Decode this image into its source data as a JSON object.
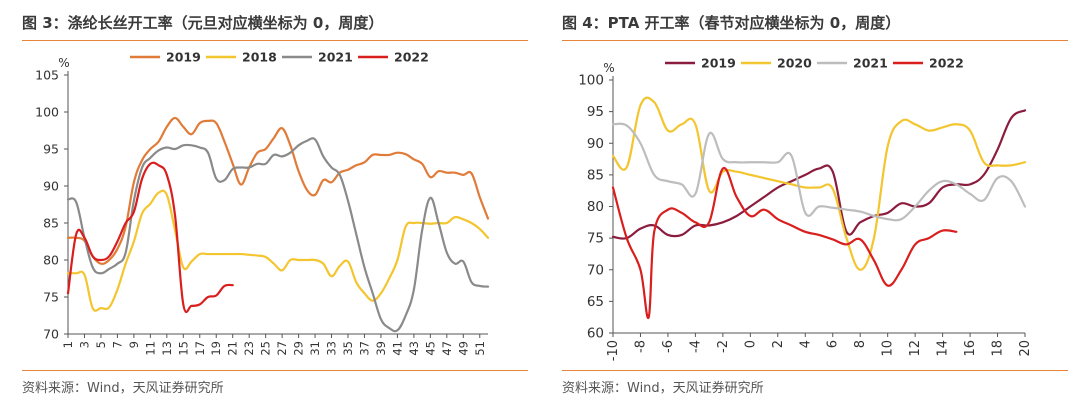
{
  "charts": [
    {
      "title": "图 3：涤纶长丝开工率（元旦对应横坐标为 0，周度）",
      "source": "资料来源：Wind，天风证券研究所"
    },
    {
      "title": "图 4：PTA 开工率（春节对应横坐标为 0，周度）",
      "source": "资料来源：Wind，天风证券研究所"
    }
  ],
  "chart_data": [
    {
      "type": "line",
      "ylabel": "%",
      "ylim": [
        70,
        105
      ],
      "yticks": [
        70,
        75,
        80,
        85,
        90,
        95,
        100,
        105
      ],
      "xlim": [
        1,
        52
      ],
      "xticks": [
        1,
        3,
        5,
        7,
        9,
        11,
        13,
        15,
        17,
        19,
        21,
        23,
        25,
        27,
        29,
        31,
        33,
        35,
        37,
        39,
        41,
        43,
        45,
        47,
        49,
        51
      ],
      "grid": false,
      "legend": "top",
      "series": [
        {
          "name": "2019",
          "color": "#e07b39",
          "x": [
            1,
            2,
            3,
            4,
            5,
            6,
            7,
            8,
            9,
            10,
            11,
            12,
            13,
            14,
            15,
            16,
            17,
            18,
            19,
            20,
            21,
            22,
            23,
            24,
            25,
            26,
            27,
            28,
            29,
            30,
            31,
            32,
            33,
            34,
            35,
            36,
            37,
            38,
            39,
            40,
            41,
            42,
            43,
            44,
            45,
            46,
            47,
            48,
            49,
            50,
            51,
            52
          ],
          "values": [
            83,
            83,
            82.6,
            80.5,
            79.5,
            80,
            81.5,
            84.5,
            90.5,
            93.5,
            95,
            96,
            98,
            99.2,
            98,
            97,
            98.5,
            98.8,
            98.5,
            96,
            93,
            90.2,
            92.5,
            94.5,
            95,
            96.5,
            97.8,
            95.5,
            92,
            89.5,
            88.8,
            90.8,
            90.5,
            91.8,
            92.2,
            92.8,
            93.2,
            94.2,
            94.2,
            94.2,
            94.5,
            94.3,
            93.6,
            93,
            91.2,
            92,
            91.8,
            91.8,
            91.5,
            91.7,
            88.5,
            85.6
          ]
        },
        {
          "name": "2018",
          "color": "#f3c52f",
          "x": [
            1,
            2,
            3,
            4,
            5,
            6,
            7,
            8,
            9,
            10,
            11,
            12,
            13,
            14,
            15,
            16,
            17,
            18,
            19,
            20,
            21,
            22,
            23,
            24,
            25,
            26,
            27,
            28,
            29,
            30,
            31,
            32,
            33,
            34,
            35,
            36,
            37,
            38,
            39,
            40,
            41,
            42,
            43,
            44,
            45,
            46,
            47,
            48,
            49,
            50,
            51,
            52
          ],
          "values": [
            78.2,
            78.2,
            78,
            73.5,
            73.5,
            73.6,
            76,
            79.5,
            82.5,
            86.3,
            87.6,
            89.1,
            88.8,
            84,
            79,
            79.8,
            80.8,
            80.8,
            80.8,
            80.8,
            80.8,
            80.8,
            80.7,
            80.6,
            80.4,
            79.5,
            78.6,
            80,
            80,
            80,
            80,
            79.5,
            77.8,
            79.2,
            79.8,
            77,
            75.5,
            74.5,
            75.5,
            77.5,
            80,
            84.5,
            85,
            85,
            84.9,
            85,
            85,
            85.8,
            85.5,
            85,
            84.2,
            83
          ]
        },
        {
          "name": "2021",
          "color": "#8a8a8a",
          "x": [
            1,
            2,
            3,
            4,
            5,
            6,
            7,
            8,
            9,
            10,
            11,
            12,
            13,
            14,
            15,
            16,
            17,
            18,
            19,
            20,
            21,
            22,
            23,
            24,
            25,
            26,
            27,
            28,
            29,
            30,
            31,
            32,
            33,
            34,
            35,
            36,
            37,
            38,
            39,
            40,
            41,
            42,
            43,
            44,
            45,
            46,
            47,
            48,
            49,
            50,
            51,
            52
          ],
          "values": [
            88.2,
            87.8,
            83,
            79,
            78.2,
            78.8,
            79.5,
            81,
            88,
            92.5,
            93.8,
            94.8,
            95.2,
            95,
            95.5,
            95.5,
            95.2,
            94.5,
            91,
            90.8,
            92.3,
            92.5,
            92.5,
            93,
            93,
            94.2,
            94,
            94.5,
            95.5,
            96.1,
            96.3,
            94,
            92.5,
            91.5,
            88,
            83.5,
            79,
            75.5,
            72,
            70.8,
            70.5,
            72.5,
            76,
            84,
            88.4,
            85,
            81,
            79.5,
            79.8,
            77,
            76.5,
            76.4
          ]
        },
        {
          "name": "2022",
          "color": "#d91e1e",
          "x": [
            1,
            2,
            3,
            4,
            5,
            6,
            7,
            8,
            9,
            10,
            11,
            12,
            13,
            14,
            15,
            16,
            17,
            18,
            19,
            20,
            21
          ],
          "values": [
            75.5,
            83.5,
            83,
            80.5,
            80,
            80.5,
            82.5,
            85,
            86.5,
            91,
            93,
            92.8,
            91.5,
            86,
            74,
            73.8,
            74,
            75,
            75.2,
            76.5,
            76.6
          ]
        }
      ]
    },
    {
      "type": "line",
      "ylabel": "%",
      "ylim": [
        60,
        100
      ],
      "yticks": [
        60,
        65,
        70,
        75,
        80,
        85,
        90,
        95,
        100
      ],
      "xlim": [
        -10,
        20
      ],
      "xticks": [
        -10,
        -8,
        -6,
        -4,
        -2,
        0,
        2,
        4,
        6,
        8,
        10,
        12,
        14,
        16,
        18,
        20
      ],
      "grid": false,
      "legend": "top",
      "series": [
        {
          "name": "2019",
          "color": "#8b1c3d",
          "x": [
            -10,
            -9,
            -8,
            -7,
            -6,
            -5,
            -4,
            -3,
            -2,
            -1,
            0,
            1,
            2,
            3,
            4,
            5,
            6,
            7,
            8,
            9,
            10,
            11,
            12,
            13,
            14,
            15,
            16,
            17,
            18,
            19,
            20
          ],
          "values": [
            75.2,
            75,
            76.5,
            77,
            75.5,
            75.5,
            77,
            77,
            77.5,
            78.5,
            80,
            81.5,
            83,
            84,
            85,
            86,
            85.5,
            76,
            77.5,
            78.5,
            79,
            80.5,
            80,
            80.5,
            83,
            83.5,
            83.5,
            85,
            89,
            94,
            95.2
          ]
        },
        {
          "name": "2020",
          "color": "#f3c52f",
          "x": [
            -10,
            -9,
            -8,
            -7,
            -6,
            -5,
            -4,
            -3,
            -2,
            -1,
            0,
            1,
            2,
            3,
            4,
            5,
            6,
            7,
            8,
            9,
            10,
            11,
            12,
            13,
            14,
            15,
            16,
            17,
            18,
            19,
            20
          ],
          "values": [
            88,
            86.2,
            96,
            96.5,
            92,
            93,
            93,
            82.5,
            85.5,
            85.5,
            85,
            84.5,
            84,
            83.5,
            83,
            83,
            82.8,
            75,
            70,
            75,
            89.5,
            93.5,
            93,
            92,
            92.5,
            93,
            92,
            87,
            86.5,
            86.5,
            87
          ]
        },
        {
          "name": "2021",
          "color": "#bdbdbd",
          "x": [
            -10,
            -9,
            -8,
            -7,
            -6,
            -5,
            -4,
            -3,
            -2,
            -1,
            0,
            1,
            2,
            3,
            4,
            5,
            6,
            7,
            8,
            9,
            10,
            11,
            12,
            13,
            14,
            15,
            16,
            17,
            18,
            19,
            20
          ],
          "values": [
            93,
            92.8,
            90,
            85,
            84,
            83.5,
            82,
            91.5,
            87.5,
            87,
            87,
            87,
            87,
            88,
            79,
            80,
            79.8,
            79.5,
            79.2,
            78.5,
            78,
            78,
            80,
            82.5,
            84,
            83.5,
            82,
            81,
            84.5,
            84,
            80
          ]
        },
        {
          "name": "2022",
          "color": "#d91e1e",
          "x": [
            -10,
            -9,
            -8,
            -7.4,
            -7,
            -6,
            -5,
            -4,
            -3,
            -2,
            -1,
            0,
            1,
            2,
            3,
            4,
            5,
            6,
            7,
            8,
            9,
            10,
            11,
            12,
            13,
            14,
            15
          ],
          "values": [
            83,
            75,
            70,
            62.5,
            76,
            79.5,
            79,
            77.5,
            77.5,
            86,
            81.5,
            78.5,
            79.5,
            78,
            77,
            76,
            75.5,
            74.8,
            74,
            74.8,
            71.5,
            67.5,
            70,
            74,
            75,
            76.2,
            76
          ]
        }
      ]
    }
  ]
}
